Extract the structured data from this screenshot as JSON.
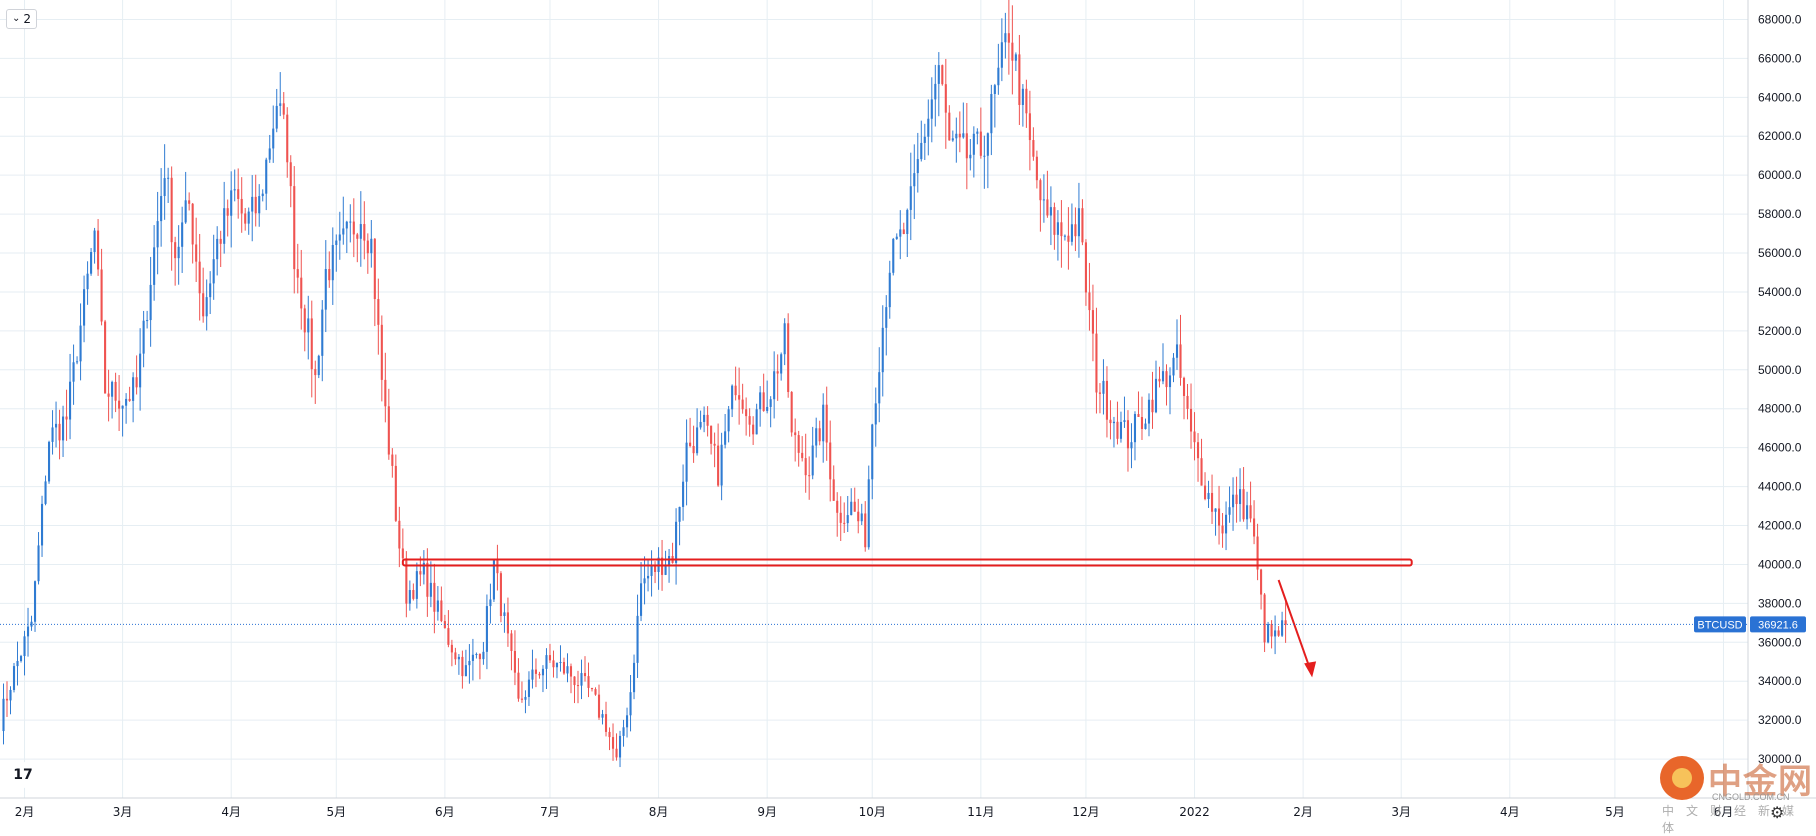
{
  "toolbar": {
    "collapse_label": "2",
    "collapse_icon": "chevron-down-icon"
  },
  "logo": {
    "text": "17"
  },
  "watermark": {
    "title": "中金网",
    "url": "CNGOLD.COM.CN",
    "subtitle": "中文财经新媒体"
  },
  "colors": {
    "up": "#2f7bd2",
    "down": "#ef5350",
    "grid": "#e6eef3",
    "support_line": "#e41e1e",
    "price_label_bg": "#2a72d4"
  },
  "chart_data": {
    "type": "candlestick",
    "symbol": "BTCUSD",
    "last_price": 36921.6,
    "last_price_label": "36921.6",
    "ylim": [
      28000,
      69000
    ],
    "yticks": [
      30000,
      32000,
      34000,
      36000,
      38000,
      40000,
      42000,
      44000,
      46000,
      48000,
      50000,
      52000,
      54000,
      56000,
      58000,
      60000,
      62000,
      64000,
      66000,
      68000
    ],
    "ytick_labels": [
      "30000.0",
      "32000.0",
      "34000.0",
      "36000.0",
      "38000.0",
      "40000.0",
      "42000.0",
      "44000.0",
      "46000.0",
      "48000.0",
      "50000.0",
      "52000.0",
      "54000.0",
      "56000.0",
      "58000.0",
      "60000.0",
      "62000.0",
      "64000.0",
      "66000.0",
      "68000.0"
    ],
    "xlim": [
      "2021-01-25",
      "2022-06-08"
    ],
    "xticks": [
      {
        "date": "2021-02-01",
        "label": "2月"
      },
      {
        "date": "2021-03-01",
        "label": "3月"
      },
      {
        "date": "2021-04-01",
        "label": "4月"
      },
      {
        "date": "2021-05-01",
        "label": "5月"
      },
      {
        "date": "2021-06-01",
        "label": "6月"
      },
      {
        "date": "2021-07-01",
        "label": "7月"
      },
      {
        "date": "2021-08-01",
        "label": "8月"
      },
      {
        "date": "2021-09-01",
        "label": "9月"
      },
      {
        "date": "2021-10-01",
        "label": "10月"
      },
      {
        "date": "2021-11-01",
        "label": "11月"
      },
      {
        "date": "2021-12-01",
        "label": "12月"
      },
      {
        "date": "2022-01-01",
        "label": "2022"
      },
      {
        "date": "2022-02-01",
        "label": "2月"
      },
      {
        "date": "2022-03-01",
        "label": "3月"
      },
      {
        "date": "2022-04-01",
        "label": "4月"
      },
      {
        "date": "2022-05-01",
        "label": "5月"
      },
      {
        "date": "2022-06-01",
        "label": "6月"
      }
    ],
    "support_level": {
      "price": 40100,
      "from": "2021-05-20",
      "to": "2022-03-04"
    },
    "arrow": {
      "from_date": "2022-01-25",
      "from_price": 39200,
      "to_date": "2022-02-03",
      "to_price": 34200
    },
    "anchors": [
      [
        "2021-01-25",
        32000
      ],
      [
        "2021-01-29",
        34500
      ],
      [
        "2021-02-03",
        37000
      ],
      [
        "2021-02-08",
        46500
      ],
      [
        "2021-02-13",
        47500
      ],
      [
        "2021-02-21",
        57000
      ],
      [
        "2021-02-24",
        49000
      ],
      [
        "2021-03-01",
        48500
      ],
      [
        "2021-03-05",
        49000
      ],
      [
        "2021-03-13",
        60500
      ],
      [
        "2021-03-16",
        56000
      ],
      [
        "2021-03-20",
        58500
      ],
      [
        "2021-03-24",
        53000
      ],
      [
        "2021-03-28",
        56500
      ],
      [
        "2021-04-02",
        59000
      ],
      [
        "2021-04-05",
        57500
      ],
      [
        "2021-04-09",
        58500
      ],
      [
        "2021-04-14",
        63800
      ],
      [
        "2021-04-17",
        61500
      ],
      [
        "2021-04-19",
        56000
      ],
      [
        "2021-04-25",
        49500
      ],
      [
        "2021-04-28",
        55000
      ],
      [
        "2021-05-03",
        56500
      ],
      [
        "2021-05-08",
        58000
      ],
      [
        "2021-05-11",
        56500
      ],
      [
        "2021-05-14",
        49500
      ],
      [
        "2021-05-19",
        41000
      ],
      [
        "2021-05-21",
        38500
      ],
      [
        "2021-05-26",
        39500
      ],
      [
        "2021-06-01",
        36500
      ],
      [
        "2021-06-07",
        34500
      ],
      [
        "2021-06-12",
        36000
      ],
      [
        "2021-06-15",
        40000
      ],
      [
        "2021-06-19",
        36000
      ],
      [
        "2021-06-22",
        32800
      ],
      [
        "2021-06-27",
        34500
      ],
      [
        "2021-07-01",
        35000
      ],
      [
        "2021-07-06",
        34500
      ],
      [
        "2021-07-12",
        33500
      ],
      [
        "2021-07-17",
        31800
      ],
      [
        "2021-07-20",
        29800
      ],
      [
        "2021-07-24",
        33500
      ],
      [
        "2021-07-27",
        39000
      ],
      [
        "2021-08-01",
        40000
      ],
      [
        "2021-08-05",
        40500
      ],
      [
        "2021-08-09",
        46000
      ],
      [
        "2021-08-14",
        47000
      ],
      [
        "2021-08-18",
        44800
      ],
      [
        "2021-08-23",
        49500
      ],
      [
        "2021-08-28",
        47500
      ],
      [
        "2021-09-02",
        49000
      ],
      [
        "2021-09-06",
        51500
      ],
      [
        "2021-09-08",
        46500
      ],
      [
        "2021-09-13",
        45000
      ],
      [
        "2021-09-17",
        47500
      ],
      [
        "2021-09-21",
        42500
      ],
      [
        "2021-09-25",
        43000
      ],
      [
        "2021-09-29",
        41500
      ],
      [
        "2021-10-01",
        47500
      ],
      [
        "2021-10-06",
        55500
      ],
      [
        "2021-10-11",
        57500
      ],
      [
        "2021-10-15",
        61500
      ],
      [
        "2021-10-20",
        65500
      ],
      [
        "2021-10-23",
        61500
      ],
      [
        "2021-10-28",
        61000
      ],
      [
        "2021-11-01",
        61300
      ],
      [
        "2021-11-03",
        62500
      ],
      [
        "2021-11-09",
        67500
      ],
      [
        "2021-11-12",
        64500
      ],
      [
        "2021-11-16",
        60500
      ],
      [
        "2021-11-19",
        58000
      ],
      [
        "2021-11-24",
        57000
      ],
      [
        "2021-11-29",
        57500
      ],
      [
        "2021-12-04",
        49500
      ],
      [
        "2021-12-09",
        47500
      ],
      [
        "2021-12-13",
        46500
      ],
      [
        "2021-12-17",
        47500
      ],
      [
        "2021-12-21",
        49000
      ],
      [
        "2021-12-27",
        50500
      ],
      [
        "2021-12-31",
        46500
      ],
      [
        "2022-01-05",
        43500
      ],
      [
        "2022-01-09",
        42000
      ],
      [
        "2022-01-13",
        43500
      ],
      [
        "2022-01-17",
        42500
      ],
      [
        "2022-01-21",
        36500
      ],
      [
        "2022-01-24",
        36200
      ],
      [
        "2022-01-27",
        36900
      ]
    ]
  }
}
